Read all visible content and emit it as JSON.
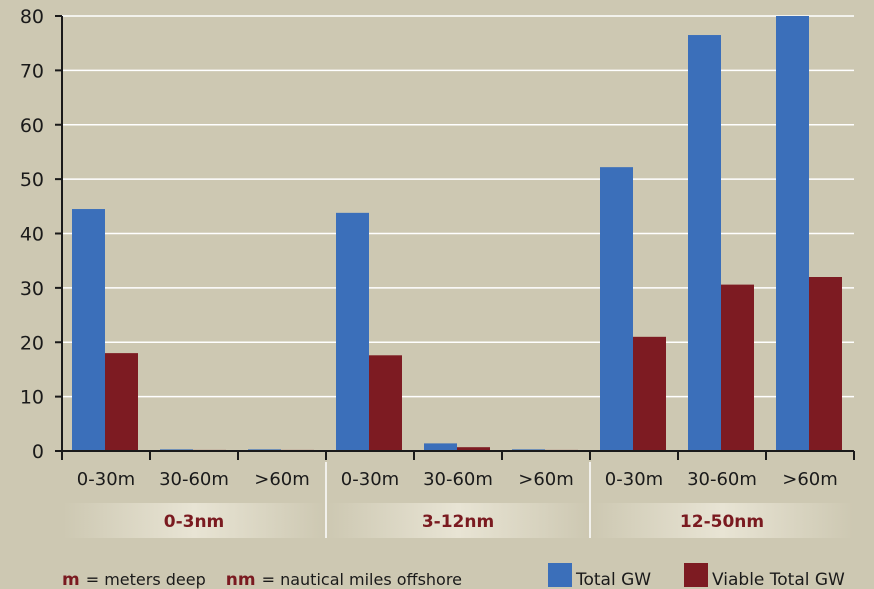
{
  "chart_data": {
    "type": "bar",
    "title": "",
    "xlabel": "",
    "ylabel": "",
    "ylim": [
      0,
      80
    ],
    "yticks": [
      0,
      10,
      20,
      30,
      40,
      50,
      60,
      70,
      80
    ],
    "grid": true,
    "legend_position": "bottom-right",
    "categories": [
      "0-30m",
      "30-60m",
      ">60m",
      "0-30m",
      "30-60m",
      ">60m",
      "0-30m",
      "30-60m",
      ">60m"
    ],
    "groups": [
      {
        "label": "0-3nm",
        "span": [
          0,
          2
        ]
      },
      {
        "label": "3-12nm",
        "span": [
          3,
          5
        ]
      },
      {
        "label": "12-50nm",
        "span": [
          6,
          8
        ]
      }
    ],
    "series": [
      {
        "name": "Total GW",
        "color": "#3b6fba",
        "values": [
          44.5,
          0.3,
          0.3,
          43.8,
          1.4,
          0.3,
          52.2,
          76.5,
          80
        ]
      },
      {
        "name": "Viable Total GW",
        "color": "#7d1b22",
        "values": [
          18,
          0.2,
          0.2,
          17.6,
          0.7,
          0.2,
          21,
          30.6,
          32
        ]
      }
    ],
    "footnote": [
      {
        "key": "m",
        "text": "= meters deep"
      },
      {
        "key": "nm",
        "text": "= nautical miles offshore"
      }
    ]
  }
}
